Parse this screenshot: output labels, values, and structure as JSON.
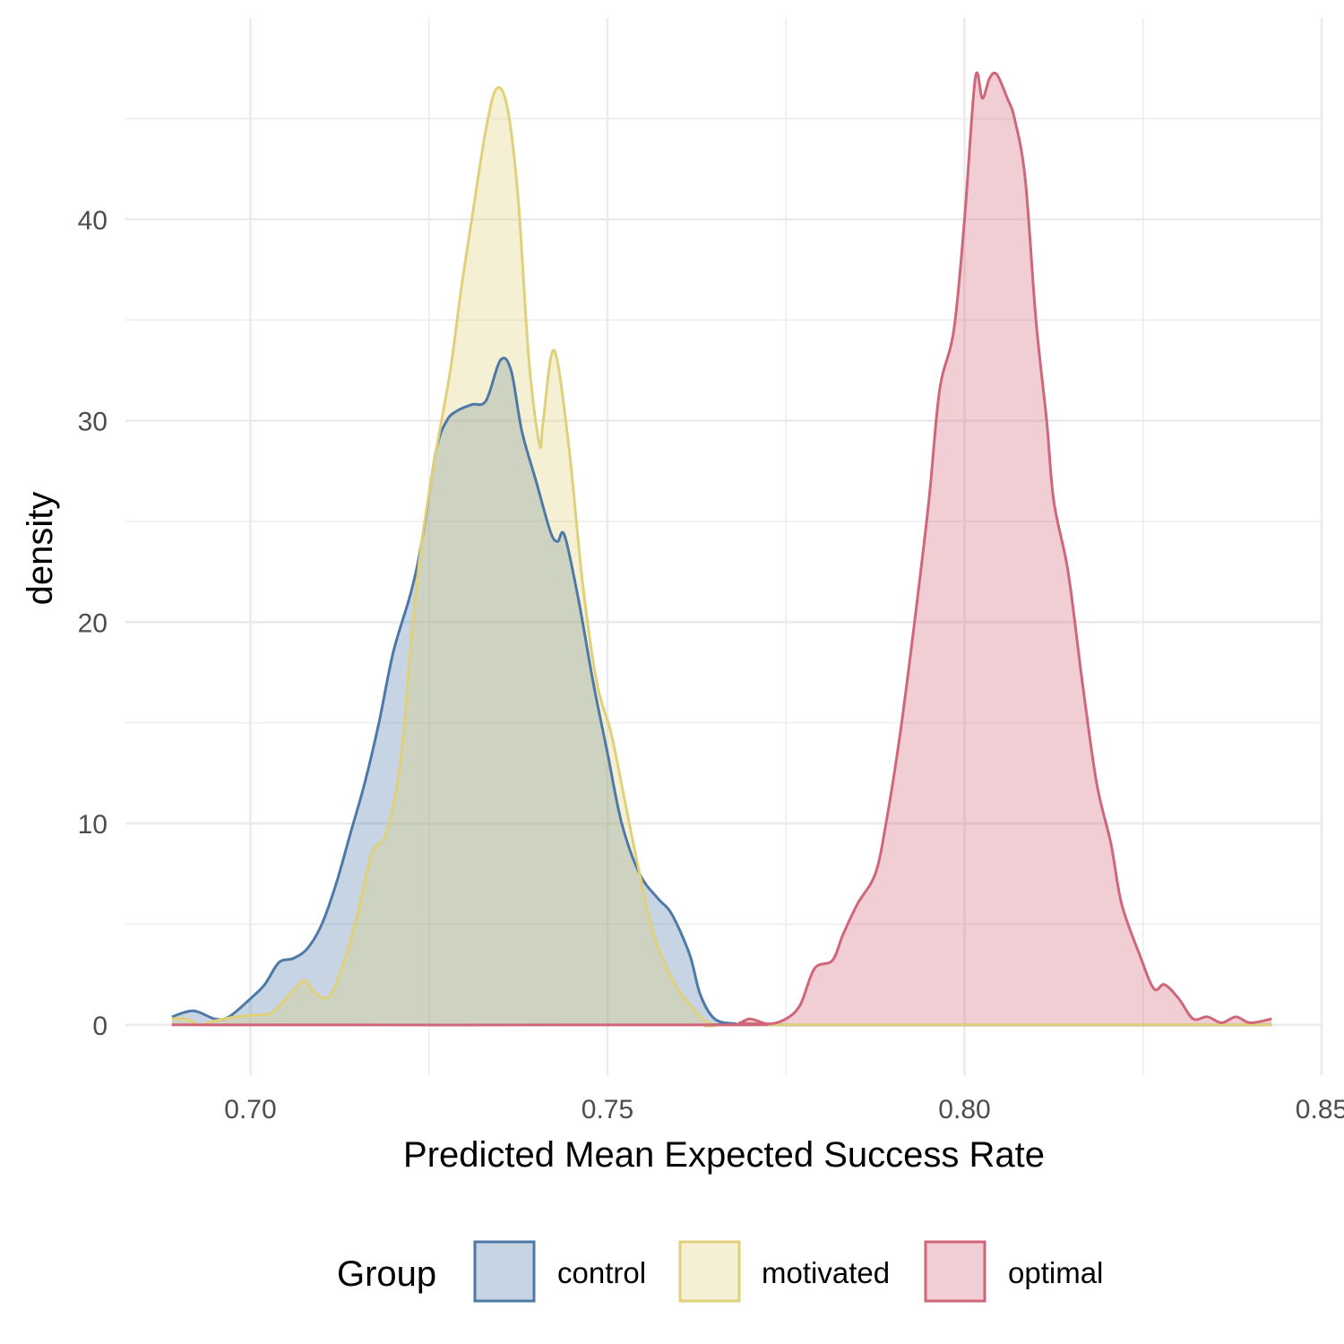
{
  "chart_data": {
    "type": "area",
    "xlabel": "Predicted Mean Expected Success Rate",
    "ylabel": "density",
    "xlim": [
      0.6825,
      0.85
    ],
    "ylim": [
      -2.5,
      50
    ],
    "x_ticks": [
      0.7,
      0.75,
      0.8,
      0.85
    ],
    "x_tick_labels": [
      "0.70",
      "0.75",
      "0.80",
      "0.85"
    ],
    "y_ticks": [
      0,
      10,
      20,
      30,
      40
    ],
    "y_tick_labels": [
      "0",
      "10",
      "20",
      "30",
      "40"
    ],
    "grid": true,
    "legend": {
      "title": "Group",
      "position": "bottom"
    },
    "series": [
      {
        "name": "control",
        "color": "#4e79a7",
        "fill": "#4e79a7",
        "points": [
          [
            0.689,
            0.4
          ],
          [
            0.692,
            0.7
          ],
          [
            0.695,
            0.3
          ],
          [
            0.697,
            0.4
          ],
          [
            0.7,
            1.3
          ],
          [
            0.702,
            2.0
          ],
          [
            0.704,
            3.1
          ],
          [
            0.706,
            3.3
          ],
          [
            0.708,
            3.8
          ],
          [
            0.71,
            5.0
          ],
          [
            0.712,
            7.0
          ],
          [
            0.714,
            9.5
          ],
          [
            0.716,
            12.0
          ],
          [
            0.718,
            15.0
          ],
          [
            0.72,
            18.5
          ],
          [
            0.7225,
            21.5
          ],
          [
            0.724,
            24.0
          ],
          [
            0.726,
            28.5
          ],
          [
            0.7275,
            30.0
          ],
          [
            0.729,
            30.5
          ],
          [
            0.731,
            30.8
          ],
          [
            0.733,
            31.0
          ],
          [
            0.735,
            33.0
          ],
          [
            0.7365,
            32.5
          ],
          [
            0.738,
            29.5
          ],
          [
            0.74,
            27.0
          ],
          [
            0.742,
            24.5
          ],
          [
            0.743,
            24.0
          ],
          [
            0.744,
            24.3
          ],
          [
            0.746,
            21.0
          ],
          [
            0.748,
            17.0
          ],
          [
            0.75,
            13.5
          ],
          [
            0.752,
            10.0
          ],
          [
            0.7545,
            7.5
          ],
          [
            0.757,
            6.3
          ],
          [
            0.759,
            5.5
          ],
          [
            0.7615,
            3.5
          ],
          [
            0.763,
            1.5
          ],
          [
            0.765,
            0.3
          ],
          [
            0.768,
            0.05
          ],
          [
            0.771,
            0.0
          ],
          [
            0.843,
            0.0
          ]
        ]
      },
      {
        "name": "motivated",
        "color": "#e0d07a",
        "fill": "#e0d07a",
        "points": [
          [
            0.689,
            0.3
          ],
          [
            0.691,
            0.3
          ],
          [
            0.693,
            0.0
          ],
          [
            0.695,
            0.2
          ],
          [
            0.698,
            0.4
          ],
          [
            0.701,
            0.5
          ],
          [
            0.703,
            0.6
          ],
          [
            0.705,
            1.3
          ],
          [
            0.7075,
            2.2
          ],
          [
            0.709,
            1.6
          ],
          [
            0.711,
            1.4
          ],
          [
            0.713,
            3.0
          ],
          [
            0.715,
            5.5
          ],
          [
            0.717,
            8.5
          ],
          [
            0.719,
            9.5
          ],
          [
            0.721,
            13.0
          ],
          [
            0.7225,
            19.0
          ],
          [
            0.724,
            24.0
          ],
          [
            0.726,
            28.5
          ],
          [
            0.728,
            32.5
          ],
          [
            0.7295,
            36.5
          ],
          [
            0.731,
            40.0
          ],
          [
            0.733,
            44.5
          ],
          [
            0.7345,
            46.5
          ],
          [
            0.736,
            45.5
          ],
          [
            0.7375,
            41.0
          ],
          [
            0.739,
            33.0
          ],
          [
            0.7405,
            28.8
          ],
          [
            0.741,
            30.0
          ],
          [
            0.7425,
            33.5
          ],
          [
            0.7445,
            29.0
          ],
          [
            0.7465,
            22.0
          ],
          [
            0.7485,
            17.0
          ],
          [
            0.7505,
            14.5
          ],
          [
            0.7525,
            11.0
          ],
          [
            0.7545,
            7.5
          ],
          [
            0.7565,
            4.5
          ],
          [
            0.759,
            2.3
          ],
          [
            0.762,
            0.8
          ],
          [
            0.765,
            0.0
          ],
          [
            0.771,
            0.0
          ],
          [
            0.843,
            0.0
          ]
        ]
      },
      {
        "name": "optimal",
        "color": "#cf6679",
        "fill": "#cf6679",
        "points": [
          [
            0.689,
            0.0
          ],
          [
            0.766,
            0.0
          ],
          [
            0.7685,
            0.1
          ],
          [
            0.77,
            0.3
          ],
          [
            0.7725,
            0.05
          ],
          [
            0.775,
            0.3
          ],
          [
            0.777,
            1.0
          ],
          [
            0.779,
            2.8
          ],
          [
            0.7815,
            3.2
          ],
          [
            0.783,
            4.5
          ],
          [
            0.785,
            6.0
          ],
          [
            0.7875,
            7.5
          ],
          [
            0.789,
            10.0
          ],
          [
            0.791,
            14.5
          ],
          [
            0.793,
            20.0
          ],
          [
            0.795,
            26.0
          ],
          [
            0.7965,
            31.5
          ],
          [
            0.7985,
            34.5
          ],
          [
            0.8,
            40.0
          ],
          [
            0.8015,
            47.0
          ],
          [
            0.8025,
            46.0
          ],
          [
            0.8035,
            47.0
          ],
          [
            0.8045,
            47.2
          ],
          [
            0.806,
            46.0
          ],
          [
            0.807,
            45.0
          ],
          [
            0.8085,
            42.0
          ],
          [
            0.81,
            35.0
          ],
          [
            0.8115,
            30.0
          ],
          [
            0.8125,
            26.0
          ],
          [
            0.8145,
            22.5
          ],
          [
            0.8165,
            17.0
          ],
          [
            0.8185,
            12.0
          ],
          [
            0.8205,
            9.0
          ],
          [
            0.822,
            6.0
          ],
          [
            0.8245,
            3.5
          ],
          [
            0.8265,
            1.8
          ],
          [
            0.828,
            2.0
          ],
          [
            0.83,
            1.3
          ],
          [
            0.832,
            0.3
          ],
          [
            0.834,
            0.4
          ],
          [
            0.836,
            0.1
          ],
          [
            0.838,
            0.4
          ],
          [
            0.84,
            0.1
          ],
          [
            0.843,
            0.3
          ]
        ]
      }
    ]
  }
}
